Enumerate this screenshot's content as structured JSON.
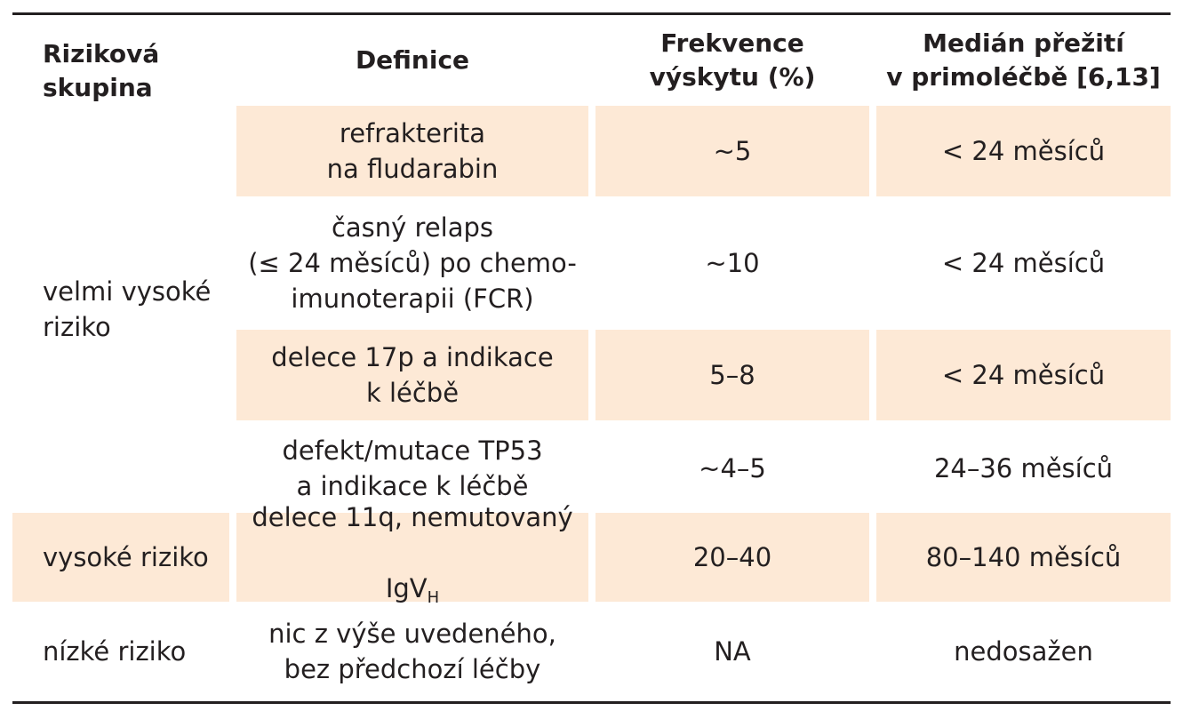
{
  "colors": {
    "row_shade": "#fde9d6",
    "text": "#231f20",
    "rule": "#231f20"
  },
  "header": {
    "group": "Riziková\nskupina",
    "definition": "Definice",
    "frequency": "Frekvence\nvýskytu (%)",
    "survival": "Medián přežití\nv primoléčbě [6,13]"
  },
  "groups": {
    "very_high": "velmi vysoké\nriziko",
    "high": "vysoké riziko",
    "low": "nízké riziko"
  },
  "rows": [
    {
      "definition": "refrakterita\nna fludarabin",
      "frequency": "~5",
      "survival": "< 24 měsíců"
    },
    {
      "definition": "časný relaps\n(≤ 24 měsíců) po chemo-\nimunoterapii (FCR)",
      "frequency": "~10",
      "survival": "< 24 měsíců"
    },
    {
      "definition": "delece 17p a indikace\nk léčbě",
      "frequency": "5–8",
      "survival": "< 24 měsíců"
    },
    {
      "definition": "defekt/mutace TP53\na indikace k léčbě",
      "frequency": "~4–5",
      "survival": "24–36 měsíců"
    },
    {
      "definition_line1": "delece 11q, nemutovaný",
      "definition_line2": "IgV",
      "definition_sub": "H",
      "frequency": "20–40",
      "survival": "80–140 měsíců"
    },
    {
      "definition": "nic z výše uvedeného,\nbez předchozí léčby",
      "frequency": "NA",
      "survival": "nedosažen"
    }
  ]
}
